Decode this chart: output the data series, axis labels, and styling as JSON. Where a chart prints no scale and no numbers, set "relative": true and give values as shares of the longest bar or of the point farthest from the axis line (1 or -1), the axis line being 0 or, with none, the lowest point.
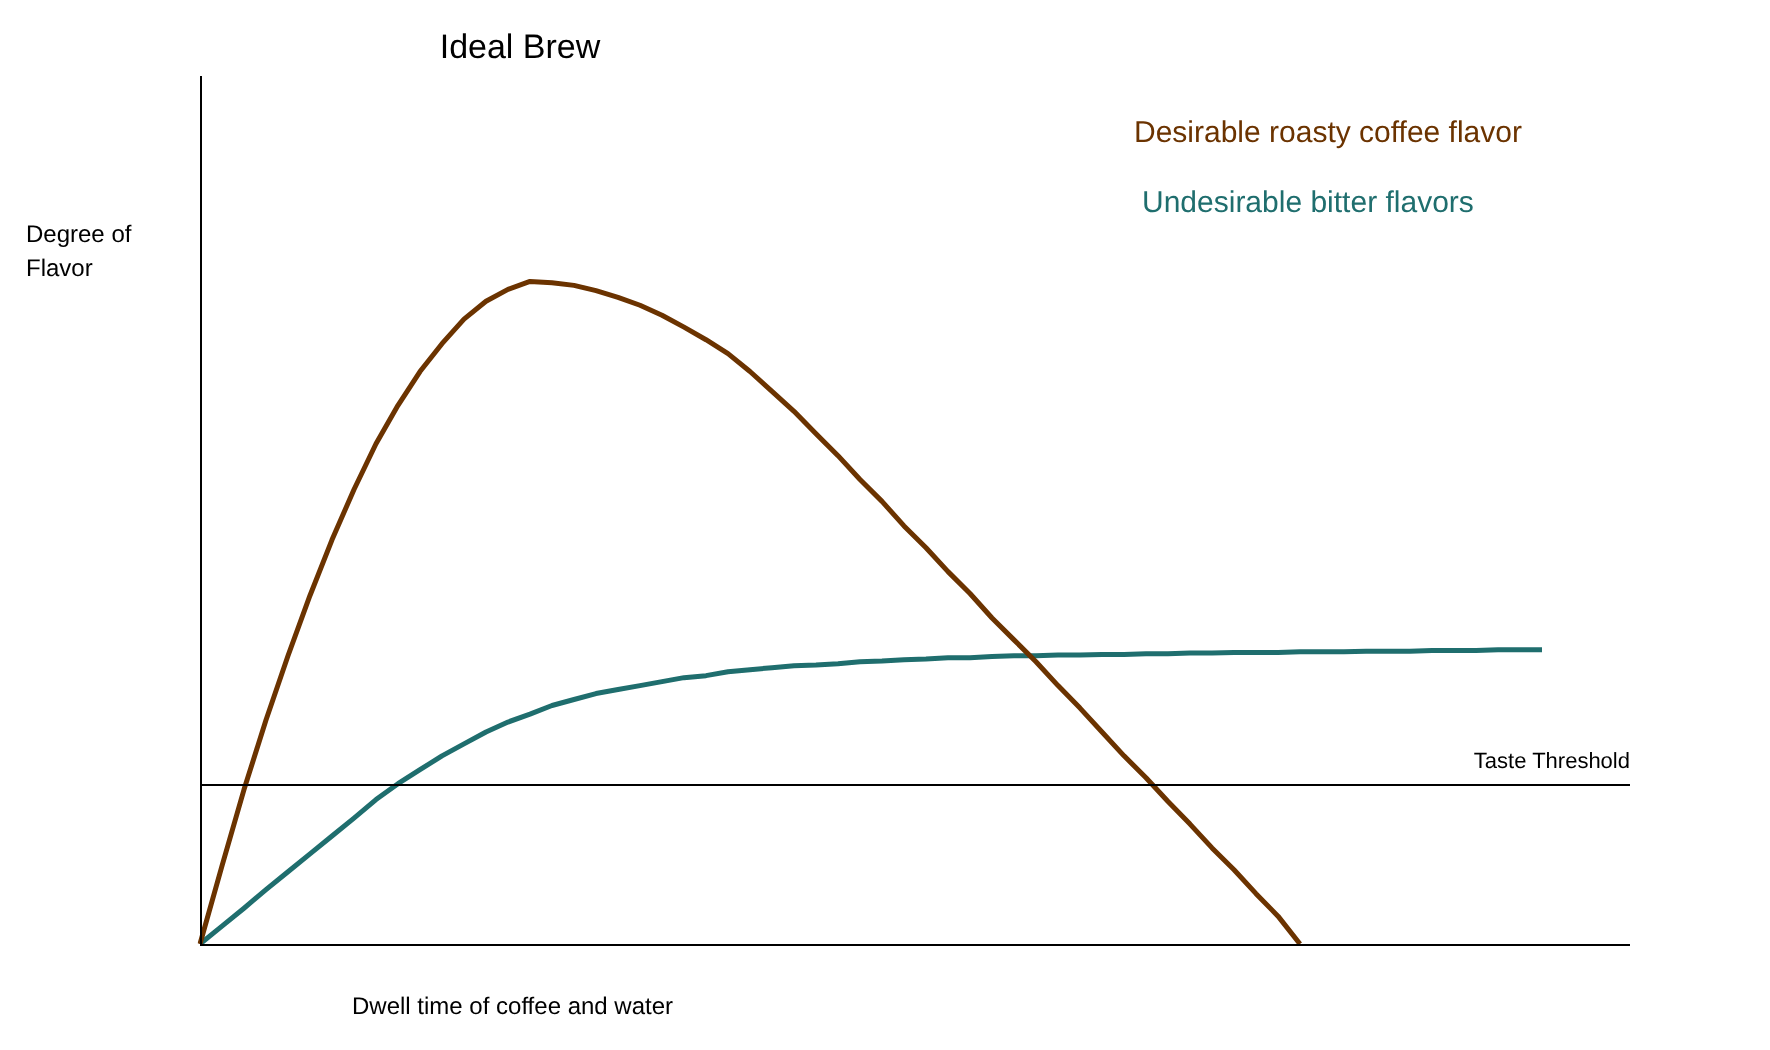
{
  "chart_data": {
    "type": "line",
    "title": "Ideal Brew",
    "xlabel": "Dwell time of coffee and water",
    "ylabel": "Degree of Flavor",
    "relative": true,
    "legend": "top right",
    "marker": "none",
    "line_style": "solid",
    "categories": [
      null,
      null,
      null,
      null,
      null,
      null,
      null,
      null,
      null,
      null,
      null,
      null,
      null,
      null,
      null,
      null,
      null,
      null,
      null,
      null,
      null,
      null,
      null,
      null,
      null,
      null,
      null,
      null,
      null,
      null,
      null,
      null,
      null,
      null,
      null,
      null,
      null,
      null,
      null,
      null,
      null,
      null,
      null,
      null,
      null,
      null,
      null,
      null,
      null,
      null,
      null,
      null,
      null,
      null,
      null,
      null,
      null,
      null,
      null,
      null,
      null,
      null,
      null,
      null,
      null,
      null
    ],
    "series": [
      {
        "name": "Desirable roasty coffee flavor",
        "color": "#6b3300",
        "values": [
          0,
          0.118,
          0.233,
          0.338,
          0.435,
          0.526,
          0.61,
          0.686,
          0.755,
          0.813,
          0.864,
          0.906,
          0.943,
          0.97,
          0.988,
          1,
          0.998,
          0.994,
          0.986,
          0.976,
          0.964,
          0.949,
          0.931,
          0.912,
          0.891,
          0.864,
          0.834,
          0.804,
          0.77,
          0.737,
          0.701,
          0.668,
          0.631,
          0.598,
          0.562,
          0.529,
          0.492,
          0.459,
          0.426,
          0.39,
          0.356,
          0.32,
          0.284,
          0.251,
          0.215,
          0.181,
          0.145,
          0.112,
          0.076,
          0.042,
          0,
          null,
          null,
          null,
          null,
          null,
          null,
          null,
          null,
          null,
          null,
          null,
          null,
          null,
          null,
          null
        ]
      },
      {
        "name": "Undesirable bitter flavors",
        "color": "#1f6e6e",
        "values": [
          0,
          0.027,
          0.054,
          0.082,
          0.109,
          0.136,
          0.163,
          0.19,
          0.218,
          0.242,
          0.263,
          0.284,
          0.302,
          0.32,
          0.335,
          0.347,
          0.36,
          0.369,
          0.378,
          0.384,
          0.39,
          0.396,
          0.402,
          0.405,
          0.411,
          0.414,
          0.417,
          0.42,
          0.421,
          0.423,
          0.426,
          0.427,
          0.429,
          0.43,
          0.432,
          0.432,
          0.434,
          0.435,
          0.435,
          0.436,
          0.436,
          0.437,
          0.437,
          0.438,
          0.438,
          0.439,
          0.439,
          0.44,
          0.44,
          0.44,
          0.441,
          0.441,
          0.441,
          0.442,
          0.442,
          0.442,
          0.443,
          0.443,
          0.443,
          0.444,
          0.444,
          0.444,
          null,
          null,
          null,
          null
        ]
      }
    ],
    "ref_lines": [
      {
        "axis": "y",
        "value": 0.24,
        "label": "Taste Threshold",
        "color": "#000000"
      }
    ]
  }
}
